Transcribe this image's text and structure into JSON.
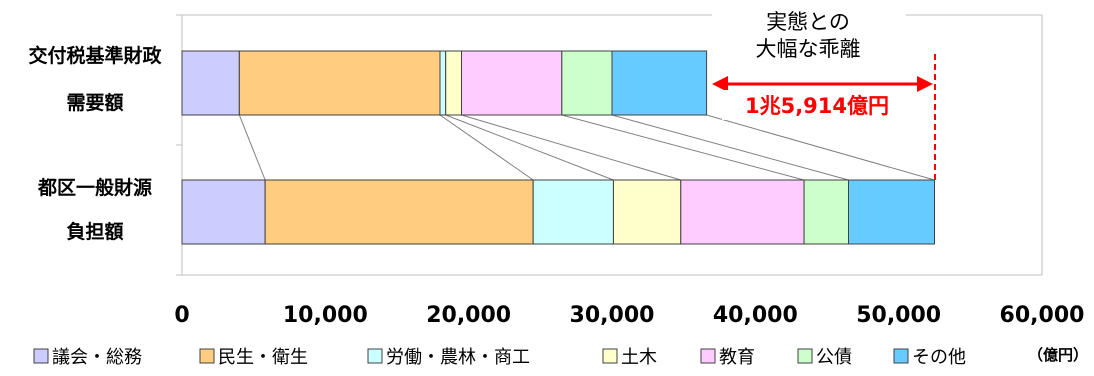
{
  "chart_data": {
    "type": "bar",
    "orientation": "horizontal",
    "stacked": true,
    "categories": [
      {
        "line1": "交付税基準財政",
        "line2": "需要額"
      },
      {
        "line1": "都区一般財源",
        "line2": "負担額"
      }
    ],
    "series": [
      {
        "name": "議会・総務",
        "color": "#ccccff",
        "values": [
          4000,
          5800
        ]
      },
      {
        "name": "民生・衛生",
        "color": "#ffcc80",
        "values": [
          14000,
          18700
        ]
      },
      {
        "name": "労働・農林・商工",
        "color": "#ccffff",
        "values": [
          400,
          5600
        ]
      },
      {
        "name": "土木",
        "color": "#ffffcc",
        "values": [
          1100,
          4700
        ]
      },
      {
        "name": "教育",
        "color": "#ffccff",
        "values": [
          7000,
          8600
        ]
      },
      {
        "name": "公債",
        "color": "#ccffcc",
        "values": [
          3500,
          3100
        ]
      },
      {
        "name": "その他",
        "color": "#66ccff",
        "values": [
          6600,
          6000
        ]
      }
    ],
    "xlim": [
      0,
      60000
    ],
    "xticks": [
      "0",
      "10,000",
      "20,000",
      "30,000",
      "40,000",
      "50,000",
      "60,000"
    ],
    "xtick_values": [
      0,
      10000,
      20000,
      30000,
      40000,
      50000,
      60000
    ],
    "unit": "（億円）",
    "legend_position": "bottom",
    "annotations": {
      "note_line1": "実態との",
      "note_line2": "大幅な乖離",
      "gap_label": "1兆5,914億円",
      "gap_color": "#ff0000"
    }
  }
}
